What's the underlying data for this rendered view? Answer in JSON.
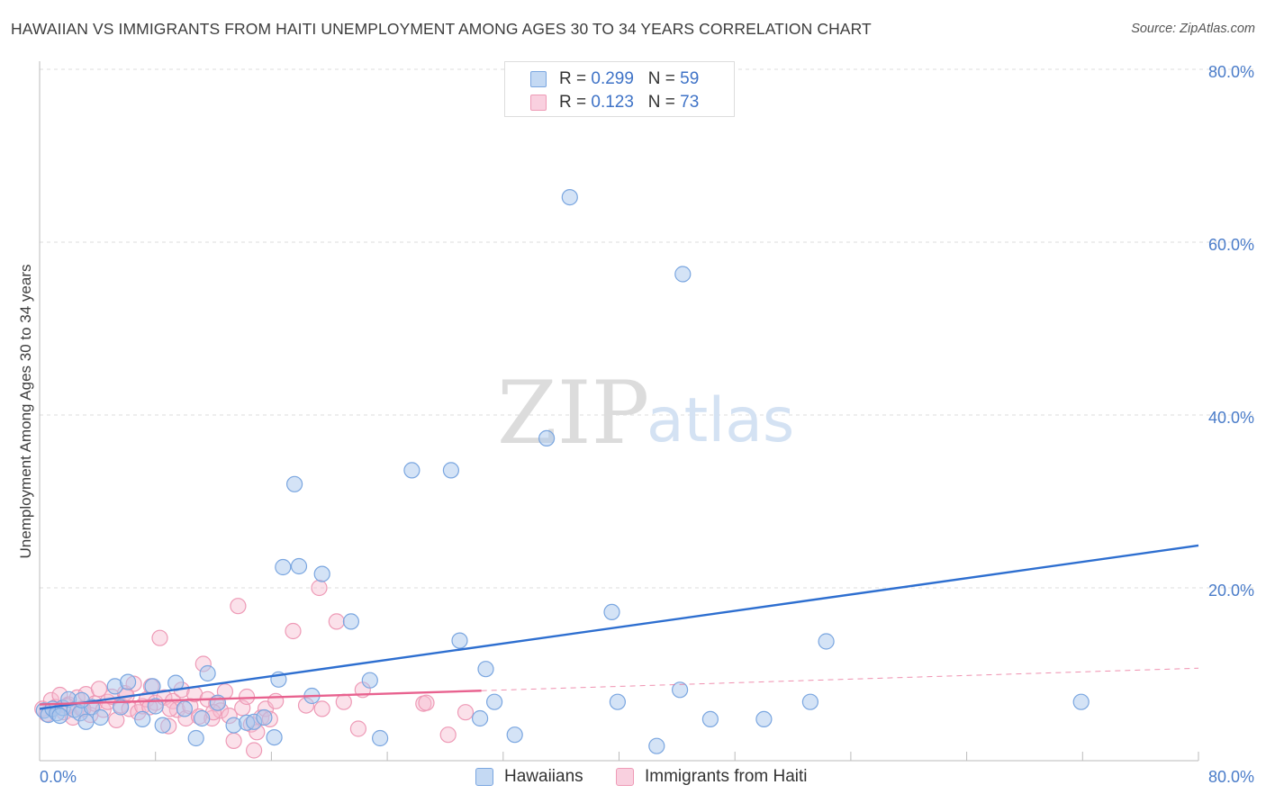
{
  "header": {
    "title": "HAWAIIAN VS IMMIGRANTS FROM HAITI UNEMPLOYMENT AMONG AGES 30 TO 34 YEARS CORRELATION CHART",
    "source": "Source: ZipAtlas.com"
  },
  "watermark": {
    "zip": "ZIP",
    "atlas": "atlas"
  },
  "legend": {
    "rows": [
      {
        "r_label": "R = ",
        "r_value": "0.299",
        "n_label": "N = ",
        "n_value": "59"
      },
      {
        "r_label": "R = ",
        "r_value": "0.123",
        "n_label": "N = ",
        "n_value": "73"
      }
    ]
  },
  "bottom_legend": {
    "series1": "Hawaiians",
    "series2": "Immigrants from Haiti"
  },
  "colors": {
    "blue_fill": "#aac8ee",
    "blue_stroke": "#7aa6e0",
    "blue_line": "#2e6fd0",
    "pink_fill": "#f6bcd0",
    "pink_stroke": "#ee9ab6",
    "pink_line": "#e8628f",
    "grid": "#dddddd",
    "tick_text": "#4a7cc9"
  },
  "chart_data": {
    "type": "scatter",
    "title": "HAWAIIAN VS IMMIGRANTS FROM HAITI UNEMPLOYMENT AMONG AGES 30 TO 34 YEARS CORRELATION CHART",
    "xlabel": "",
    "ylabel": "Unemployment Among Ages 30 to 34 years",
    "xlim": [
      0,
      80
    ],
    "ylim": [
      0,
      80
    ],
    "x_tick_labels": [
      "0.0%",
      "80.0%"
    ],
    "y_ticks": [
      20,
      40,
      60,
      80
    ],
    "y_tick_labels": [
      "20.0%",
      "40.0%",
      "60.0%",
      "80.0%"
    ],
    "grid": true,
    "legend_position": "top-center",
    "series": [
      {
        "name": "Hawaiians",
        "R": 0.299,
        "N": 59,
        "trend": {
          "x": [
            0,
            80
          ],
          "y": [
            6.0,
            24.9
          ],
          "style": "solid"
        },
        "points": [
          [
            0.3,
            5.8
          ],
          [
            0.6,
            5.3
          ],
          [
            0.9,
            6.0
          ],
          [
            1.2,
            5.5
          ],
          [
            1.6,
            6.1
          ],
          [
            2.0,
            7.1
          ],
          [
            2.4,
            5.9
          ],
          [
            2.8,
            5.5
          ],
          [
            3.2,
            4.5
          ],
          [
            3.6,
            6.2
          ],
          [
            4.2,
            5.0
          ],
          [
            5.2,
            8.6
          ],
          [
            6.1,
            9.1
          ],
          [
            7.1,
            4.8
          ],
          [
            7.8,
            8.6
          ],
          [
            8.5,
            4.1
          ],
          [
            9.4,
            9.0
          ],
          [
            10.0,
            6.0
          ],
          [
            10.8,
            2.6
          ],
          [
            11.2,
            4.9
          ],
          [
            11.6,
            10.1
          ],
          [
            12.3,
            6.7
          ],
          [
            13.4,
            4.1
          ],
          [
            14.3,
            4.4
          ],
          [
            14.8,
            4.5
          ],
          [
            15.5,
            5.0
          ],
          [
            16.2,
            2.7
          ],
          [
            16.5,
            9.4
          ],
          [
            16.8,
            22.4
          ],
          [
            17.6,
            32.0
          ],
          [
            17.9,
            22.5
          ],
          [
            18.8,
            7.5
          ],
          [
            19.5,
            21.6
          ],
          [
            21.5,
            16.1
          ],
          [
            22.8,
            9.3
          ],
          [
            23.5,
            2.6
          ],
          [
            25.7,
            33.6
          ],
          [
            28.4,
            33.6
          ],
          [
            29.0,
            13.9
          ],
          [
            30.4,
            4.9
          ],
          [
            30.8,
            10.6
          ],
          [
            31.4,
            6.8
          ],
          [
            32.8,
            3.0
          ],
          [
            35.0,
            37.3
          ],
          [
            36.6,
            65.2
          ],
          [
            39.5,
            17.2
          ],
          [
            39.9,
            6.8
          ],
          [
            42.6,
            1.7
          ],
          [
            44.2,
            8.2
          ],
          [
            44.4,
            56.3
          ],
          [
            46.3,
            4.8
          ],
          [
            50.0,
            4.8
          ],
          [
            53.2,
            6.8
          ],
          [
            54.3,
            13.8
          ],
          [
            71.9,
            6.8
          ],
          [
            2.9,
            7.0
          ],
          [
            5.6,
            6.2
          ],
          [
            8.0,
            6.3
          ],
          [
            1.4,
            5.2
          ]
        ]
      },
      {
        "name": "Immigrants from Haiti",
        "R": 0.123,
        "N": 73,
        "trend": {
          "x": [
            0,
            30.5
          ],
          "y": [
            6.5,
            8.1
          ],
          "dashed_extension": {
            "x": [
              30.5,
              80
            ],
            "y": [
              8.1,
              10.7
            ]
          }
        },
        "points": [
          [
            0.2,
            6.0
          ],
          [
            0.5,
            5.4
          ],
          [
            0.8,
            7.0
          ],
          [
            1.1,
            6.2
          ],
          [
            1.4,
            7.6
          ],
          [
            1.7,
            5.6
          ],
          [
            2.0,
            6.5
          ],
          [
            2.3,
            5.0
          ],
          [
            2.6,
            7.3
          ],
          [
            2.9,
            6.0
          ],
          [
            3.2,
            7.7
          ],
          [
            3.5,
            5.3
          ],
          [
            3.8,
            6.6
          ],
          [
            4.1,
            8.3
          ],
          [
            4.4,
            5.9
          ],
          [
            4.7,
            6.8
          ],
          [
            5.0,
            7.4
          ],
          [
            5.3,
            4.7
          ],
          [
            5.6,
            6.4
          ],
          [
            5.9,
            7.8
          ],
          [
            6.2,
            6.0
          ],
          [
            6.5,
            8.9
          ],
          [
            6.8,
            5.6
          ],
          [
            7.1,
            6.3
          ],
          [
            7.4,
            7.1
          ],
          [
            7.7,
            8.6
          ],
          [
            8.0,
            6.7
          ],
          [
            8.3,
            14.2
          ],
          [
            8.6,
            7.3
          ],
          [
            8.9,
            4.0
          ],
          [
            9.2,
            6.9
          ],
          [
            9.5,
            5.9
          ],
          [
            9.8,
            8.2
          ],
          [
            10.1,
            4.9
          ],
          [
            10.4,
            6.3
          ],
          [
            10.7,
            7.7
          ],
          [
            11.0,
            5.1
          ],
          [
            11.3,
            11.2
          ],
          [
            11.6,
            7.1
          ],
          [
            11.9,
            4.9
          ],
          [
            12.2,
            6.6
          ],
          [
            12.5,
            5.8
          ],
          [
            12.8,
            8.0
          ],
          [
            13.1,
            5.2
          ],
          [
            13.4,
            2.3
          ],
          [
            13.7,
            17.9
          ],
          [
            14.0,
            6.1
          ],
          [
            14.3,
            7.4
          ],
          [
            14.6,
            4.2
          ],
          [
            15.0,
            3.3
          ],
          [
            15.3,
            5.0
          ],
          [
            15.6,
            6.0
          ],
          [
            15.9,
            4.8
          ],
          [
            16.3,
            6.9
          ],
          [
            17.5,
            15.0
          ],
          [
            18.4,
            6.4
          ],
          [
            19.3,
            20.0
          ],
          [
            20.5,
            16.1
          ],
          [
            21.0,
            6.8
          ],
          [
            22.0,
            3.7
          ],
          [
            22.3,
            8.2
          ],
          [
            26.5,
            6.6
          ],
          [
            28.2,
            3.0
          ],
          [
            29.4,
            5.6
          ],
          [
            1.9,
            6.3
          ],
          [
            3.0,
            6.0
          ],
          [
            6.0,
            7.5
          ],
          [
            7.6,
            6.2
          ],
          [
            9.0,
            6.0
          ],
          [
            12.0,
            5.6
          ],
          [
            14.8,
            1.2
          ],
          [
            19.5,
            6.0
          ],
          [
            26.7,
            6.7
          ]
        ]
      }
    ]
  }
}
